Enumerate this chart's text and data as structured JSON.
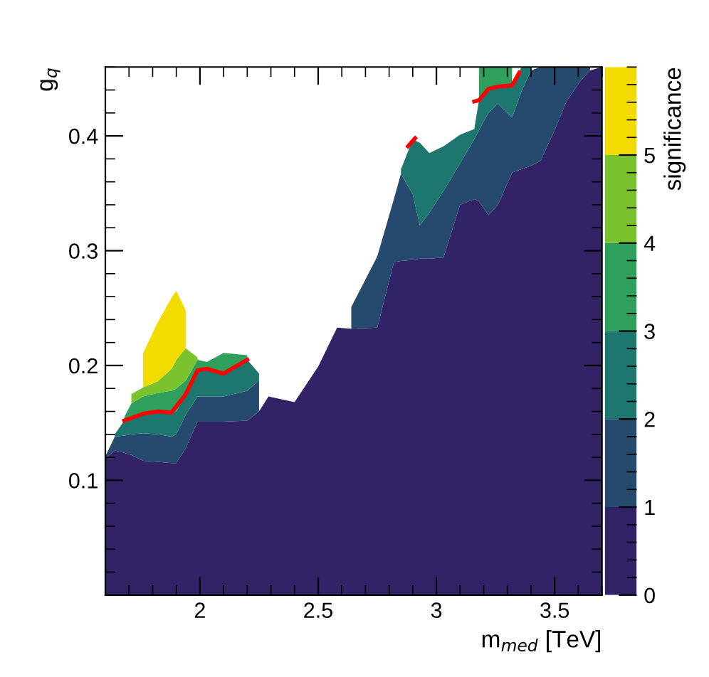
{
  "chart_data": {
    "type": "area",
    "stacked": true,
    "xlabel": "m$_{med}$ [TeV]",
    "ylabel": "g$_{q}$",
    "clabel": "significance",
    "x": [
      1.6,
      1.64,
      1.68,
      1.71,
      1.76,
      1.82,
      1.88,
      1.9,
      1.94,
      1.99,
      2.03,
      2.1,
      2.2,
      2.25,
      2.29,
      2.4,
      2.5,
      2.58,
      2.64,
      2.75,
      2.82,
      2.85,
      2.9,
      2.93,
      2.97,
      3.03,
      3.1,
      3.16,
      3.18,
      3.22,
      3.26,
      3.32,
      3.36,
      3.4,
      3.44,
      3.5,
      3.55,
      3.61,
      3.65,
      3.7
    ],
    "series": [
      {
        "color": "#322366",
        "values": [
          0.119,
          0.126,
          0.124,
          0.122,
          0.117,
          0.116,
          0.115,
          0.115,
          0.128,
          0.151,
          0.151,
          0.151,
          0.152,
          0.16,
          0.173,
          0.168,
          0.199,
          0.233,
          0.232,
          0.233,
          0.29,
          0.291,
          0.292,
          0.293,
          0.293,
          0.294,
          0.34,
          0.345,
          0.343,
          0.331,
          0.34,
          0.368,
          0.371,
          0.374,
          0.378,
          0.405,
          0.43,
          0.448,
          0.457,
          0.46
        ]
      },
      {
        "color": "#254a6e",
        "values": [
          0.002,
          0.012,
          0.015,
          0.018,
          0.024,
          0.024,
          0.023,
          0.025,
          0.029,
          0.022,
          0.022,
          0.022,
          0.026,
          0.027,
          null,
          null,
          null,
          null,
          0.019,
          0.062,
          0.055,
          0.076,
          0.057,
          0.029,
          0.04,
          0.058,
          0.036,
          0.052,
          0.062,
          0.089,
          0.088,
          0.048,
          0.068,
          0.083,
          0.082,
          0.055,
          0.03,
          0.012,
          0.003,
          null
        ]
      },
      {
        "color": "#1e776f",
        "values": [
          null,
          0.002,
          0.013,
          0.015,
          0.017,
          0.02,
          0.021,
          0.02,
          0.018,
          0.023,
          0.024,
          0.02,
          0.027,
          0.006,
          null,
          null,
          null,
          null,
          null,
          null,
          null,
          0.004,
          0.048,
          0.072,
          0.052,
          0.039,
          0.025,
          0.009,
          0.026,
          0.021,
          0.015,
          0.028,
          0.021,
          0.003,
          null,
          null,
          null,
          null,
          null,
          null
        ]
      },
      {
        "color": "#2ea05b",
        "values": [
          null,
          null,
          0.003,
          0.012,
          0.015,
          0.016,
          0.019,
          0.02,
          0.012,
          0.009,
          0.006,
          0.018,
          0.004,
          null,
          null,
          null,
          null,
          null,
          null,
          null,
          null,
          null,
          null,
          null,
          null,
          null,
          null,
          null,
          0.029,
          0.019,
          0.017,
          0.016,
          null,
          null,
          null,
          null,
          null,
          null,
          null,
          null
        ]
      },
      {
        "color": "#7ac22e",
        "values": [
          null,
          null,
          null,
          0.008,
          0.008,
          0.01,
          0.019,
          0.025,
          0.028,
          0.002,
          null,
          null,
          null,
          null,
          null,
          null,
          null,
          null,
          null,
          null,
          null,
          null,
          null,
          null,
          null,
          null,
          null,
          null,
          null,
          null,
          null,
          null,
          null,
          null,
          null,
          null,
          null,
          null,
          null,
          null
        ]
      },
      {
        "color": "#f2dc00",
        "values": [
          null,
          null,
          null,
          null,
          0.03,
          0.051,
          0.062,
          0.06,
          0.033,
          null,
          null,
          null,
          null,
          null,
          null,
          null,
          null,
          null,
          null,
          null,
          null,
          null,
          null,
          null,
          null,
          null,
          null,
          null,
          null,
          null,
          null,
          null,
          null,
          null,
          null,
          null,
          null,
          null,
          null,
          null
        ]
      },
      {
        "type": "line",
        "color": "#ff0000",
        "x": [
          1.68,
          1.76,
          1.82,
          1.88,
          1.94,
          1.99,
          2.03,
          2.1,
          2.2,
          2.5,
          2.88,
          2.91,
          3.0,
          3.16,
          3.18,
          3.22,
          3.26,
          3.32,
          3.35
        ],
        "values": [
          0.152,
          0.158,
          0.16,
          0.159,
          0.175,
          0.196,
          0.197,
          0.193,
          0.205,
          null,
          0.391,
          0.398,
          null,
          0.43,
          0.431,
          0.441,
          0.443,
          0.444,
          0.455
        ]
      }
    ],
    "xlim": [
      1.6,
      3.7
    ],
    "xticks": [
      2,
      2.5,
      3,
      3.5
    ],
    "ylim": [
      0,
      0.46
    ],
    "yticks": [
      0.1,
      0.2,
      0.3,
      0.4
    ],
    "clim": [
      0,
      6
    ],
    "cticks": [
      0,
      1,
      2,
      3,
      4,
      5
    ],
    "grid": false,
    "legend": false
  }
}
